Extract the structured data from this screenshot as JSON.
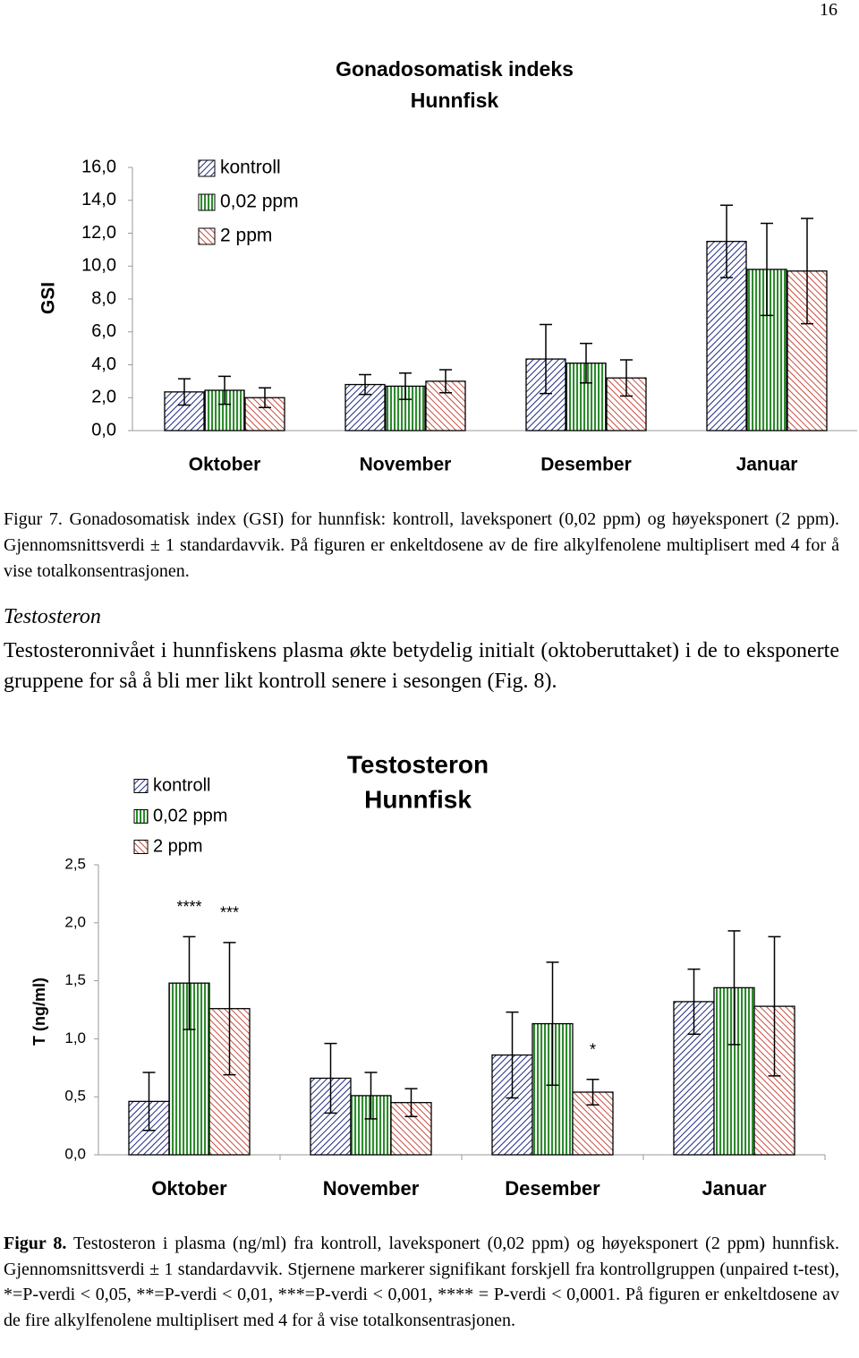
{
  "page_number": "16",
  "chart_data": [
    {
      "type": "bar",
      "title": "Gonadosomatisk indeks",
      "subtitle": "Hunnfisk",
      "y_label": "GSI",
      "categories": [
        "Oktober",
        "November",
        "Desember",
        "Januar"
      ],
      "ylim": [
        0,
        16
      ],
      "yticks": [
        {
          "value": 0,
          "label": "0,0"
        },
        {
          "value": 2,
          "label": "2,0"
        },
        {
          "value": 4,
          "label": "4,0"
        },
        {
          "value": 6,
          "label": "6,0"
        },
        {
          "value": 8,
          "label": "8,0"
        },
        {
          "value": 10,
          "label": "10,0"
        },
        {
          "value": 12,
          "label": "12,0"
        },
        {
          "value": 14,
          "label": "14,0"
        },
        {
          "value": 16,
          "label": "16,0"
        }
      ],
      "series": [
        {
          "name": "kontroll",
          "color": "#1f2a80",
          "values": [
            2.35,
            2.8,
            4.35,
            11.5
          ],
          "errors": [
            0.8,
            0.6,
            2.1,
            2.2
          ]
        },
        {
          "name": "0,02 ppm",
          "color": "#2e8b2e",
          "values": [
            2.45,
            2.7,
            4.1,
            9.8
          ],
          "errors": [
            0.85,
            0.8,
            1.2,
            2.8
          ]
        },
        {
          "name": "2 ppm",
          "color": "#c0392b",
          "values": [
            2.0,
            3.0,
            3.2,
            9.7
          ],
          "errors": [
            0.6,
            0.7,
            1.1,
            3.2
          ]
        }
      ]
    },
    {
      "type": "bar",
      "title": "Testosteron",
      "subtitle": "Hunnfisk",
      "y_label": "T (ng/ml)",
      "categories": [
        "Oktober",
        "November",
        "Desember",
        "Januar"
      ],
      "ylim": [
        0,
        2.5
      ],
      "yticks": [
        {
          "value": 0,
          "label": "0,0"
        },
        {
          "value": 0.5,
          "label": "0,5"
        },
        {
          "value": 1,
          "label": "1,0"
        },
        {
          "value": 1.5,
          "label": "1,5"
        },
        {
          "value": 2,
          "label": "2,0"
        },
        {
          "value": 2.5,
          "label": "2,5"
        }
      ],
      "series": [
        {
          "name": "kontroll",
          "color": "#1f2a80",
          "values": [
            0.46,
            0.66,
            0.86,
            1.32
          ],
          "errors": [
            0.25,
            0.3,
            0.37,
            0.28
          ],
          "significance": [
            null,
            null,
            null,
            null
          ]
        },
        {
          "name": "0,02 ppm",
          "color": "#2e8b2e",
          "values": [
            1.48,
            0.51,
            1.13,
            1.44
          ],
          "errors": [
            0.4,
            0.2,
            0.53,
            0.49
          ],
          "significance": [
            "****",
            null,
            null,
            null
          ]
        },
        {
          "name": "2 ppm",
          "color": "#c0392b",
          "values": [
            1.26,
            0.45,
            0.54,
            1.28
          ],
          "errors": [
            0.57,
            0.12,
            0.11,
            0.6
          ],
          "significance": [
            "***",
            null,
            "*",
            null
          ]
        }
      ]
    }
  ],
  "figure7_caption": {
    "label": "Figur 7.",
    "text": "Gonadosomatisk index (GSI) for hunnfisk: kontroll, laveksponert (0,02 ppm) og høyeksponert (2 ppm). Gjennomsnittsverdi ± 1 standardavvik. På figuren er enkeltdosene av de fire alkylfenolene multiplisert med 4 for å vise totalkonsentrasjonen."
  },
  "section": {
    "heading": "Testosteron",
    "paragraph": "Testosteronnivået i hunnfiskens plasma økte betydelig initialt (oktoberuttaket) i de to eksponerte gruppene for så å bli mer likt kontroll senere i sesongen (Fig. 8)."
  },
  "figure8_caption": {
    "label": "Figur 8.",
    "text": "Testosteron i plasma (ng/ml) fra kontroll, laveksponert (0,02 ppm) og høyeksponert (2 ppm) hunnfisk. Gjennomsnittsverdi ± 1 standardavvik. Stjernene markerer signifikant forskjell fra kontrollgruppen (unpaired t-test), *=P-verdi < 0,05, **=P-verdi < 0,01, ***=P-verdi < 0,001, **** = P-verdi < 0,0001. På figuren er enkeltdosene av de fire alkylfenolene multiplisert med 4 for å vise totalkonsentrasjonen."
  }
}
